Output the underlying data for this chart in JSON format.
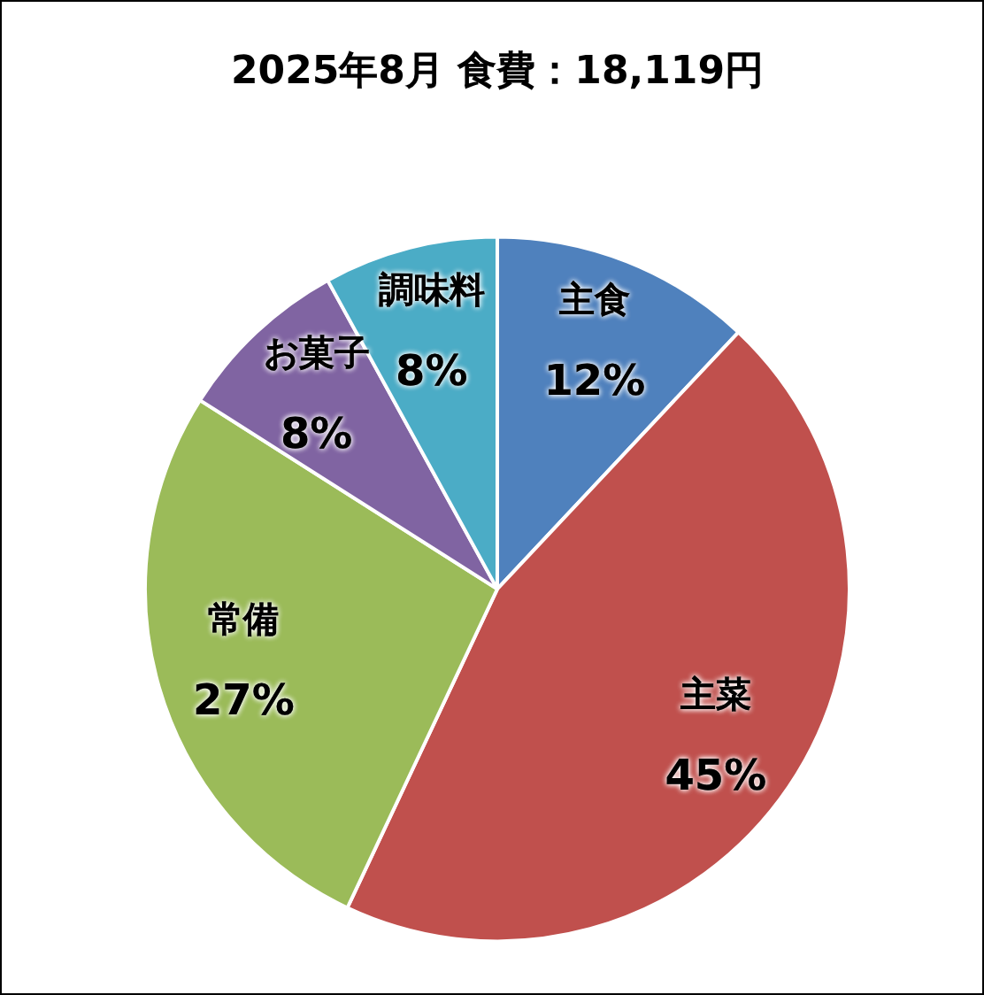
{
  "chart_data": {
    "type": "pie",
    "title": "2025年8月 食費：18,119円",
    "categories": [
      "主食",
      "主菜",
      "常備",
      "お菓子",
      "調味料"
    ],
    "values": [
      12,
      45,
      27,
      8,
      8
    ],
    "value_labels": [
      "12%",
      "45%",
      "27%",
      "8%",
      "8%"
    ],
    "colors": [
      "#4f81bd",
      "#c0504d",
      "#9bbb59",
      "#8064a2",
      "#4bacc6"
    ],
    "legend": false
  }
}
